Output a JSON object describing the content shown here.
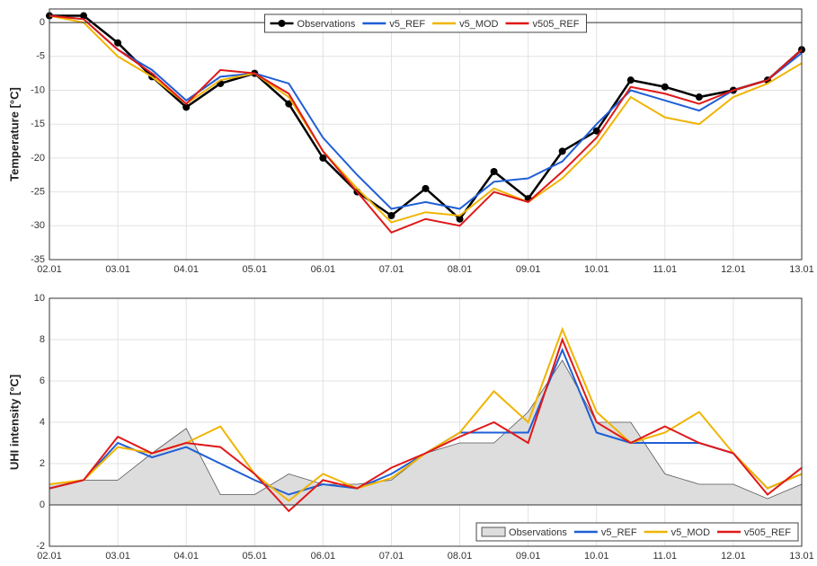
{
  "chart_data": [
    {
      "type": "line",
      "ylabel": "Temperature [°C]",
      "legend": "upper center",
      "grid": true,
      "x": [
        2,
        2.5,
        3,
        3.5,
        4,
        4.5,
        5,
        5.5,
        6,
        6.5,
        7,
        7.5,
        8,
        8.5,
        9,
        9.5,
        10,
        10.5,
        11,
        11.5,
        12,
        12.5,
        13
      ],
      "xlim": [
        2,
        13
      ],
      "xticks": [
        {
          "value": 2,
          "label": "02.01"
        },
        {
          "value": 3,
          "label": "03.01"
        },
        {
          "value": 4,
          "label": "04.01"
        },
        {
          "value": 5,
          "label": "05.01"
        },
        {
          "value": 6,
          "label": "06.01"
        },
        {
          "value": 7,
          "label": "07.01"
        },
        {
          "value": 8,
          "label": "08.01"
        },
        {
          "value": 9,
          "label": "09.01"
        },
        {
          "value": 10,
          "label": "10.01"
        },
        {
          "value": 11,
          "label": "11.01"
        },
        {
          "value": 12,
          "label": "12.01"
        },
        {
          "value": 13,
          "label": "13.01"
        }
      ],
      "ylim": [
        -35,
        2
      ],
      "yticks": [
        -35,
        -30,
        -25,
        -20,
        -15,
        -10,
        -5,
        0
      ],
      "series": [
        {
          "name": "Observations",
          "color": "#000000",
          "marker": true,
          "values": [
            1,
            1,
            -3,
            -8,
            -12.5,
            -9,
            -7.5,
            -12,
            -20,
            -25,
            -28.5,
            -24.5,
            -29,
            -22,
            -26,
            -19,
            -16,
            -8.5,
            -9.5,
            -11,
            -10,
            -8.5,
            -4
          ]
        },
        {
          "name": "v5_REF",
          "color": "#1f5fd6",
          "values": [
            1,
            0.5,
            -4,
            -7,
            -11.5,
            -8,
            -7.5,
            -9,
            -17,
            -22.5,
            -27.5,
            -26.5,
            -27.5,
            -23.5,
            -23,
            -20.5,
            -15,
            -10,
            -11.5,
            -13,
            -10,
            -8.5,
            -4.5
          ]
        },
        {
          "name": "v5_MOD",
          "color": "#f0b400",
          "values": [
            1,
            0,
            -5,
            -8,
            -12,
            -8.5,
            -7.5,
            -11,
            -19,
            -24.5,
            -29.5,
            -28,
            -28.5,
            -24.5,
            -26.5,
            -23,
            -18,
            -11,
            -14,
            -15,
            -11,
            -9,
            -6
          ]
        },
        {
          "name": "v505_REF",
          "color": "#e01818",
          "values": [
            1,
            0.5,
            -4,
            -7.5,
            -12,
            -7,
            -7.5,
            -10.5,
            -19,
            -25,
            -31,
            -29,
            -30,
            -25,
            -26.5,
            -22,
            -17,
            -9.5,
            -10.5,
            -12,
            -10,
            -8.5,
            -4
          ]
        }
      ]
    },
    {
      "type": "line",
      "ylabel": "UHI intensity [°C]",
      "legend": "lower right",
      "grid": true,
      "x": [
        2,
        2.5,
        3,
        3.5,
        4,
        4.5,
        5,
        5.5,
        6,
        6.5,
        7,
        7.5,
        8,
        8.5,
        9,
        9.5,
        10,
        10.5,
        11,
        11.5,
        12,
        12.5,
        13
      ],
      "xlim": [
        2,
        13
      ],
      "xticks": [
        {
          "value": 2,
          "label": "02.01"
        },
        {
          "value": 3,
          "label": "03.01"
        },
        {
          "value": 4,
          "label": "04.01"
        },
        {
          "value": 5,
          "label": "05.01"
        },
        {
          "value": 6,
          "label": "06.01"
        },
        {
          "value": 7,
          "label": "07.01"
        },
        {
          "value": 8,
          "label": "08.01"
        },
        {
          "value": 9,
          "label": "09.01"
        },
        {
          "value": 10,
          "label": "10.01"
        },
        {
          "value": 11,
          "label": "11.01"
        },
        {
          "value": 12,
          "label": "12.01"
        },
        {
          "value": 13,
          "label": "13.01"
        }
      ],
      "ylim": [
        -2,
        10
      ],
      "yticks": [
        -2,
        0,
        2,
        4,
        6,
        8,
        10
      ],
      "series": [
        {
          "name": "Observations",
          "color": "#555555",
          "fill": "#dddddd",
          "values": [
            1,
            1.2,
            1.2,
            2.5,
            3.7,
            0.5,
            0.5,
            1.5,
            1,
            1,
            1.2,
            2.5,
            3,
            3,
            4.5,
            7,
            4,
            4,
            1.5,
            1,
            1,
            0.3,
            1
          ]
        },
        {
          "name": "v5_REF",
          "color": "#1f5fd6",
          "values": [
            0.8,
            1.2,
            3,
            2.3,
            2.8,
            2,
            1.2,
            0.5,
            1,
            0.8,
            1.5,
            2.5,
            3.5,
            3.5,
            3.5,
            7.5,
            3.5,
            3,
            3,
            3,
            2.5,
            0.8,
            1.5
          ]
        },
        {
          "name": "v5_MOD",
          "color": "#f0b400",
          "values": [
            1,
            1.2,
            2.8,
            2.5,
            3,
            3.8,
            1.5,
            0.2,
            1.5,
            0.8,
            1.3,
            2.5,
            3.5,
            5.5,
            4,
            8.5,
            4.5,
            3,
            3.5,
            4.5,
            2.5,
            0.8,
            1.5
          ]
        },
        {
          "name": "v505_REF",
          "color": "#e01818",
          "values": [
            0.8,
            1.2,
            3.3,
            2.5,
            3,
            2.8,
            1.5,
            -0.3,
            1.2,
            0.8,
            1.8,
            2.5,
            3.3,
            4,
            3,
            8,
            4,
            3,
            3.8,
            3,
            2.5,
            0.5,
            1.8
          ]
        }
      ]
    }
  ]
}
